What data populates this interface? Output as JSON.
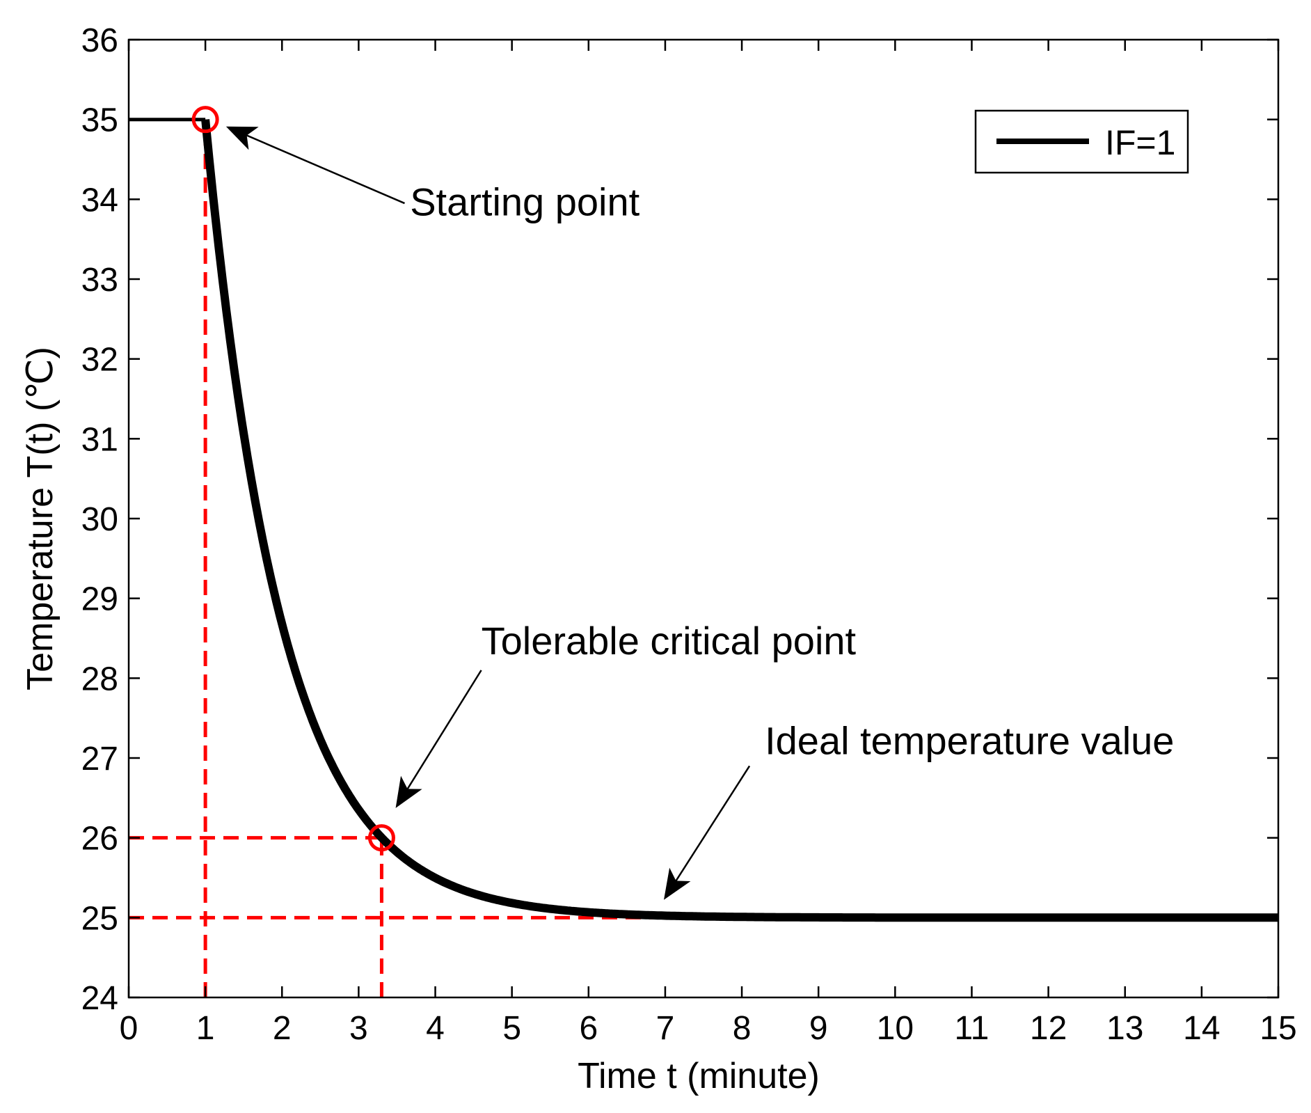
{
  "chart_data": {
    "type": "line",
    "title": "",
    "xlabel": "Time t (minute)",
    "ylabel": "Temperature T(t) (℃)",
    "xlim": [
      0,
      15
    ],
    "ylim": [
      24,
      36
    ],
    "xticks": [
      0,
      1,
      2,
      3,
      4,
      5,
      6,
      7,
      8,
      9,
      10,
      11,
      12,
      13,
      14,
      15
    ],
    "yticks": [
      24,
      25,
      26,
      27,
      28,
      29,
      30,
      31,
      32,
      33,
      34,
      35,
      36
    ],
    "grid": false,
    "legend_position": "top-right",
    "series": [
      {
        "name": "IF=1",
        "color": "#000000",
        "model": "T(t) = 35 for t <= 1; T(t) = 25 + 10 * exp(-(t - 1)) for t > 1",
        "x": [
          0,
          1,
          1.25,
          1.5,
          1.75,
          2,
          2.25,
          2.5,
          2.75,
          3,
          3.3,
          3.5,
          4,
          4.5,
          5,
          5.5,
          6,
          6.5,
          7,
          7.5,
          8,
          9,
          10,
          11,
          12,
          13,
          14,
          15
        ],
        "y": [
          35,
          35,
          32.79,
          31.07,
          29.72,
          28.68,
          27.87,
          27.23,
          26.74,
          26.35,
          26.0,
          25.82,
          25.5,
          25.3,
          25.18,
          25.11,
          25.07,
          25.04,
          25.02,
          25.02,
          25.01,
          25.0,
          25.0,
          25.0,
          25.0,
          25.0,
          25.0,
          25.0
        ]
      }
    ],
    "markers": [
      {
        "name": "starting-point",
        "x": 1,
        "y": 35,
        "color": "#ff0000"
      },
      {
        "name": "tolerable-critical-point",
        "x": 3.3,
        "y": 26,
        "color": "#ff0000"
      }
    ],
    "reference_lines": [
      {
        "name": "ref-x-1",
        "orientation": "vertical",
        "x": 1,
        "from": 24,
        "to": 35,
        "color": "#ff0000"
      },
      {
        "name": "ref-x-3.3",
        "orientation": "vertical",
        "x": 3.3,
        "from": 24,
        "to": 26,
        "color": "#ff0000"
      },
      {
        "name": "ref-y-26",
        "orientation": "horizontal",
        "y": 26,
        "from": 0,
        "to": 3.3,
        "color": "#ff0000"
      },
      {
        "name": "ref-y-25",
        "orientation": "horizontal",
        "y": 25,
        "from": 0,
        "to": 8,
        "color": "#ff0000"
      }
    ],
    "annotations": [
      {
        "name": "starting-point-annotation",
        "text": "Starting point",
        "point_x": 1.3,
        "point_y": 34.9,
        "tail_x": 3.6,
        "tail_y": 33.95,
        "text_x": 3.67,
        "text_y": 33.8,
        "anchor": "start"
      },
      {
        "name": "tolerable-critical-point-annotation",
        "text": "Tolerable critical point",
        "point_x": 3.5,
        "point_y": 26.4,
        "tail_x": 4.6,
        "tail_y": 28.1,
        "text_x": 4.6,
        "text_y": 28.3,
        "anchor": "start"
      },
      {
        "name": "ideal-temperature-annotation",
        "text": "Ideal temperature value",
        "point_x": 7.0,
        "point_y": 25.25,
        "tail_x": 8.1,
        "tail_y": 26.9,
        "text_x": 8.3,
        "text_y": 27.05,
        "anchor": "start"
      }
    ]
  }
}
